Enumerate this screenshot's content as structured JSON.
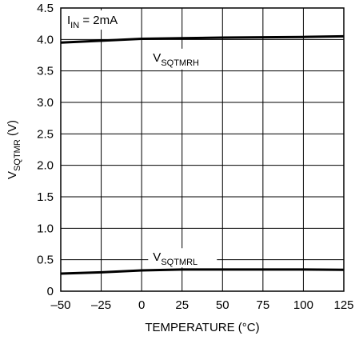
{
  "chart_data": {
    "type": "line",
    "title": "",
    "annotation": {
      "main": "I",
      "sub": "IN",
      "rest": " = 2mA"
    },
    "xlabel": "TEMPERATURE (°C)",
    "ylabel": {
      "main": "V",
      "sub": "SQTMR",
      "rest": " (V)"
    },
    "xlim": [
      -50,
      125
    ],
    "ylim": [
      0,
      4.5
    ],
    "x_ticks": [
      -50,
      -25,
      0,
      25,
      50,
      75,
      100,
      125
    ],
    "x_tick_labels": [
      "–50",
      "–25",
      "0",
      "25",
      "50",
      "75",
      "100",
      "125"
    ],
    "y_ticks": [
      0,
      0.5,
      1.0,
      1.5,
      2.0,
      2.5,
      3.0,
      3.5,
      4.0,
      4.5
    ],
    "y_tick_labels": [
      "0",
      "0.5",
      "1.0",
      "1.5",
      "2.0",
      "2.5",
      "3.0",
      "3.5",
      "4.0",
      "4.5"
    ],
    "grid": true,
    "series": [
      {
        "name": "V_SQTMRH",
        "label_main": "V",
        "label_sub": "SQTMRH",
        "color": "#000000",
        "x": [
          -50,
          -25,
          0,
          25,
          50,
          75,
          100,
          125
        ],
        "y": [
          3.95,
          3.98,
          4.01,
          4.02,
          4.03,
          4.035,
          4.04,
          4.05
        ]
      },
      {
        "name": "V_SQTMRL",
        "label_main": "V",
        "label_sub": "SQTMRL",
        "color": "#000000",
        "x": [
          -50,
          -25,
          0,
          25,
          50,
          75,
          100,
          125
        ],
        "y": [
          0.28,
          0.3,
          0.33,
          0.345,
          0.345,
          0.345,
          0.345,
          0.34
        ]
      }
    ]
  }
}
